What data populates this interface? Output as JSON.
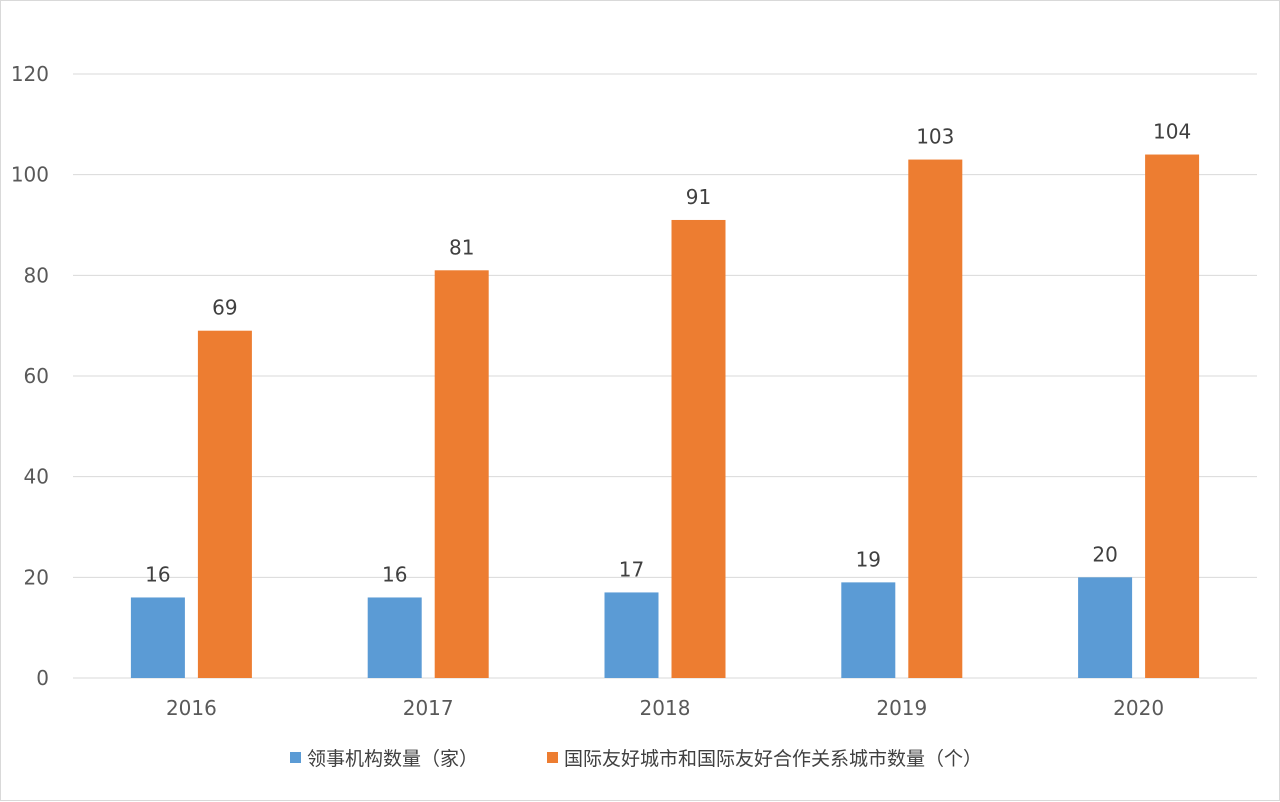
{
  "chart_data": {
    "type": "bar",
    "categories": [
      "2016",
      "2017",
      "2018",
      "2019",
      "2020"
    ],
    "series": [
      {
        "name": "领事机构数量（家）",
        "values": [
          16,
          16,
          17,
          19,
          20
        ],
        "color": "#5b9bd5"
      },
      {
        "name": "国际友好城市和国际友好合作关系城市数量（个）",
        "values": [
          69,
          81,
          91,
          103,
          104
        ],
        "color": "#ed7d31"
      }
    ],
    "ylim": [
      0,
      120
    ],
    "yticks": [
      0,
      20,
      40,
      60,
      80,
      100,
      120
    ],
    "grid": true,
    "data_labels": true,
    "legend_position": "bottom"
  }
}
